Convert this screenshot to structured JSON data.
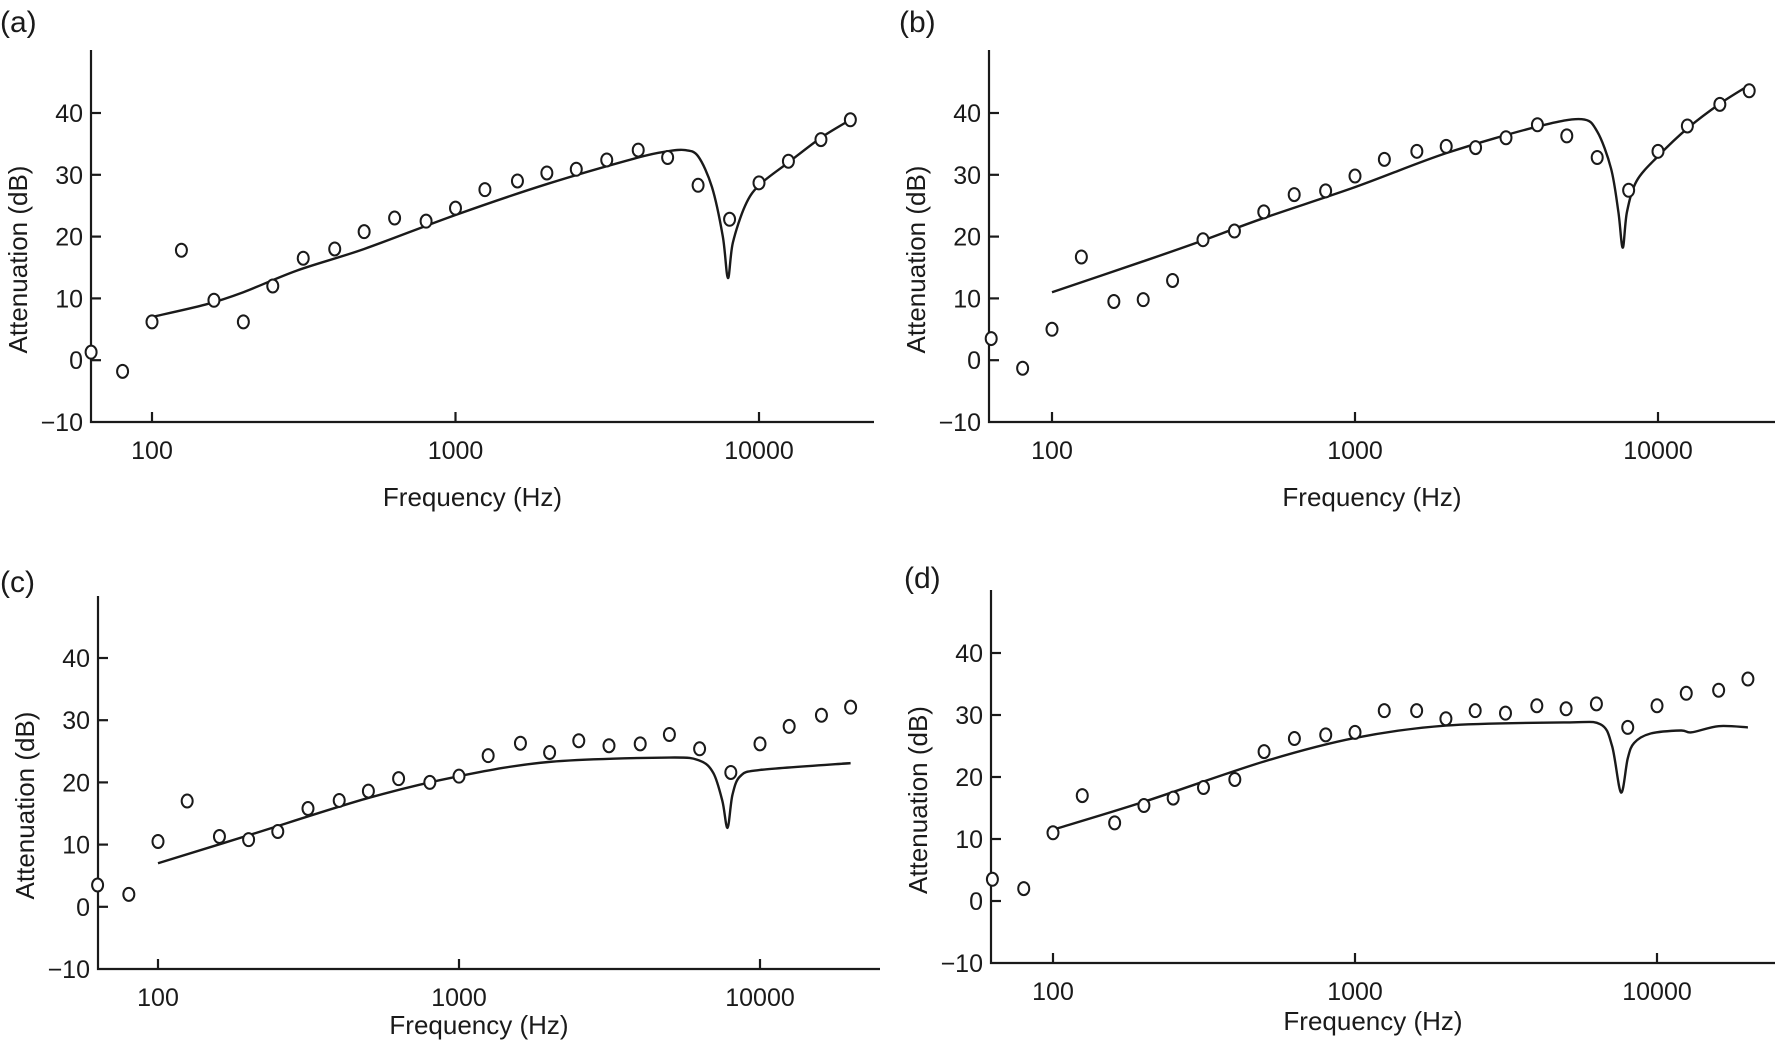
{
  "chart_data": [
    {
      "panel_label": "(a)",
      "type": "scatter+line",
      "xlabel": "Frequency (Hz)",
      "ylabel": "Attenuation (dB)",
      "x_scale": "log",
      "xlim": [
        63,
        28000
      ],
      "ylim": [
        -10,
        50
      ],
      "xticks": [
        100,
        1000,
        10000
      ],
      "xtick_labels": [
        "100",
        "1000",
        "10000"
      ],
      "yticks": [
        -10,
        0,
        10,
        20,
        30,
        40
      ],
      "ytick_labels": [
        "−10",
        "0",
        "10",
        "20",
        "30",
        "40"
      ],
      "grid": false,
      "measured": {
        "marker": "open-circle",
        "x": [
          63,
          80,
          100,
          125,
          160,
          200,
          250,
          315,
          400,
          500,
          630,
          800,
          1000,
          1250,
          1600,
          2000,
          2500,
          3150,
          4000,
          5000,
          6300,
          8000,
          10000,
          12500,
          16000,
          20000
        ],
        "y": [
          1.3,
          -1.8,
          6.2,
          17.8,
          9.7,
          6.2,
          12,
          16.5,
          18,
          20.8,
          23,
          22.5,
          24.6,
          27.6,
          29,
          30.3,
          30.9,
          32.4,
          34,
          32.8,
          28.3,
          22.8,
          28.7,
          32.2,
          35.7,
          38.9
        ]
      },
      "model": {
        "x": [
          100,
          150,
          200,
          300,
          500,
          1000,
          2000,
          4000,
          5000,
          5700,
          6300,
          7000,
          7600,
          7900,
          8200,
          9000,
          10000,
          12500,
          16000,
          20000
        ],
        "y": [
          7,
          9,
          11,
          14.5,
          18,
          23.5,
          28.5,
          32.8,
          33.8,
          34,
          33,
          28,
          20,
          13.3,
          19,
          25,
          28.3,
          32,
          36,
          38.9
        ]
      }
    },
    {
      "panel_label": "(b)",
      "type": "scatter+line",
      "xlabel": "Frequency (Hz)",
      "ylabel": "Attenuation (dB)",
      "x_scale": "log",
      "xlim": [
        63,
        28000
      ],
      "ylim": [
        -10,
        50
      ],
      "xticks": [
        100,
        1000,
        10000
      ],
      "xtick_labels": [
        "100",
        "1000",
        "10000"
      ],
      "yticks": [
        -10,
        0,
        10,
        20,
        30,
        40
      ],
      "ytick_labels": [
        "−10",
        "0",
        "10",
        "20",
        "30",
        "40"
      ],
      "grid": false,
      "measured": {
        "marker": "open-circle",
        "x": [
          63,
          80,
          100,
          125,
          160,
          200,
          250,
          315,
          400,
          500,
          630,
          800,
          1000,
          1250,
          1600,
          2000,
          2500,
          3150,
          4000,
          5000,
          6300,
          8000,
          10000,
          12500,
          16000,
          20000
        ],
        "y": [
          3.5,
          -1.3,
          5,
          16.7,
          9.5,
          9.8,
          12.9,
          19.5,
          20.9,
          24,
          26.8,
          27.4,
          29.8,
          32.5,
          33.8,
          34.6,
          34.4,
          36,
          38.1,
          36.3,
          32.8,
          27.5,
          33.8,
          37.9,
          41.4,
          43.6
        ]
      },
      "model": {
        "x": [
          100,
          200,
          300,
          500,
          1000,
          2000,
          4000,
          5600,
          6300,
          7000,
          7400,
          7650,
          7900,
          8500,
          10000,
          12500,
          16000,
          20000
        ],
        "y": [
          11,
          16,
          19,
          23,
          28,
          33.5,
          37.8,
          39,
          37,
          31,
          24,
          18.2,
          24,
          29,
          33,
          37.5,
          41.5,
          44.5
        ]
      }
    },
    {
      "panel_label": "(c)",
      "type": "scatter+line",
      "xlabel": "Frequency (Hz)",
      "ylabel": "Attenuation (dB)",
      "x_scale": "log",
      "xlim": [
        63,
        28000
      ],
      "ylim": [
        -10,
        50
      ],
      "xticks": [
        100,
        1000,
        10000
      ],
      "xtick_labels": [
        "100",
        "1000",
        "10000"
      ],
      "yticks": [
        -10,
        0,
        10,
        20,
        30,
        40
      ],
      "ytick_labels": [
        "−10",
        "0",
        "10",
        "20",
        "30",
        "40"
      ],
      "grid": false,
      "measured": {
        "marker": "open-circle",
        "x": [
          63,
          80,
          100,
          125,
          160,
          200,
          250,
          315,
          400,
          500,
          630,
          800,
          1000,
          1250,
          1600,
          2000,
          2500,
          3150,
          4000,
          5000,
          6300,
          8000,
          10000,
          12500,
          16000,
          20000
        ],
        "y": [
          3.5,
          2,
          10.5,
          17,
          11.3,
          10.8,
          12.1,
          15.8,
          17.1,
          18.6,
          20.6,
          20,
          21,
          24.3,
          26.3,
          24.8,
          26.7,
          25.9,
          26.2,
          27.7,
          25.4,
          21.6,
          26.2,
          29,
          30.8,
          32.1
        ]
      },
      "model": {
        "x": [
          100,
          200,
          500,
          1000,
          2000,
          5000,
          6300,
          7000,
          7500,
          7800,
          8100,
          8600,
          10000,
          20000
        ],
        "y": [
          7,
          11.5,
          17.5,
          21,
          23.3,
          24,
          23.5,
          21.5,
          17,
          12.7,
          18,
          21,
          22,
          23.1
        ]
      }
    },
    {
      "panel_label": "(d)",
      "type": "scatter+line",
      "xlabel": "Frequency (Hz)",
      "ylabel": "Attenuation (dB)",
      "x_scale": "log",
      "xlim": [
        63,
        28000
      ],
      "ylim": [
        -10,
        50
      ],
      "xticks": [
        100,
        1000,
        10000
      ],
      "xtick_labels": [
        "100",
        "1000",
        "10000"
      ],
      "yticks": [
        -10,
        0,
        10,
        20,
        30,
        40
      ],
      "ytick_labels": [
        "−10",
        "0",
        "10",
        "20",
        "30",
        "40"
      ],
      "grid": false,
      "measured": {
        "marker": "open-circle",
        "x": [
          63,
          80,
          100,
          125,
          160,
          200,
          250,
          315,
          400,
          500,
          630,
          800,
          1000,
          1250,
          1600,
          2000,
          2500,
          3150,
          4000,
          5000,
          6300,
          8000,
          10000,
          12500,
          16000,
          20000
        ],
        "y": [
          3.5,
          2,
          11,
          17,
          12.6,
          15.4,
          16.6,
          18.3,
          19.6,
          24.1,
          26.2,
          26.8,
          27.2,
          30.7,
          30.7,
          29.4,
          30.7,
          30.3,
          31.5,
          31,
          31.8,
          28,
          31.5,
          33.5,
          34,
          35.8
        ]
      },
      "model": {
        "x": [
          100,
          200,
          500,
          1000,
          2000,
          5000,
          6500,
          7100,
          7600,
          8000,
          8400,
          9500,
          12000,
          13000,
          16000,
          20000
        ],
        "y": [
          11.5,
          16,
          22.5,
          26.3,
          28.3,
          28.8,
          28.5,
          25,
          17.5,
          23,
          25.5,
          27,
          27.5,
          27.2,
          28.2,
          28
        ]
      }
    }
  ]
}
